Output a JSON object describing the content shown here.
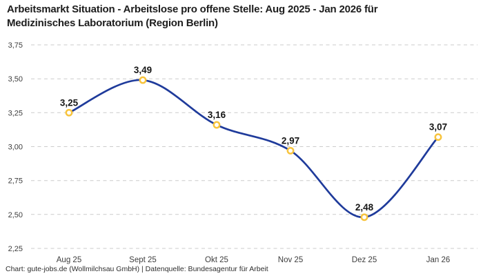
{
  "header": {
    "title_line1": "Arbeitsmarkt Situation - Arbeitslose pro offene Stelle: Aug 2025 - Jan 2026 für",
    "title_line2": "Medizinisches Laboratorium (Region Berlin)"
  },
  "footer": {
    "attribution": "Chart: gute-jobs.de (Wollmilchsau GmbH) | Datenquelle: Bundesagentur für Arbeit"
  },
  "chart_data": {
    "type": "line",
    "title": "Arbeitsmarkt Situation - Arbeitslose pro offene Stelle: Aug 2025 - Jan 2026 für Medizinisches Laboratorium (Region Berlin)",
    "categories": [
      "Aug 25",
      "Sept 25",
      "Okt 25",
      "Nov 25",
      "Dez 25",
      "Jan 26"
    ],
    "values": [
      3.25,
      3.49,
      3.16,
      2.97,
      2.48,
      3.07
    ],
    "point_labels": [
      "3,25",
      "3,49",
      "3,16",
      "2,97",
      "2,48",
      "3,07"
    ],
    "xlabel": "",
    "ylabel": "",
    "ylim": [
      2.25,
      3.75
    ],
    "ytick_step": 0.25,
    "ytick_labels": [
      "2,25",
      "2,50",
      "2,75",
      "3,00",
      "3,25",
      "3,50",
      "3,75"
    ],
    "grid": "horizontal-dashed",
    "legend": "none",
    "curve": "smooth",
    "colors": {
      "line": "#1f3b9b",
      "marker_ring": "#f8c43d",
      "marker_fill": "#ffffff",
      "gridline": "#cbcbcb",
      "label_text": "#161616"
    }
  }
}
